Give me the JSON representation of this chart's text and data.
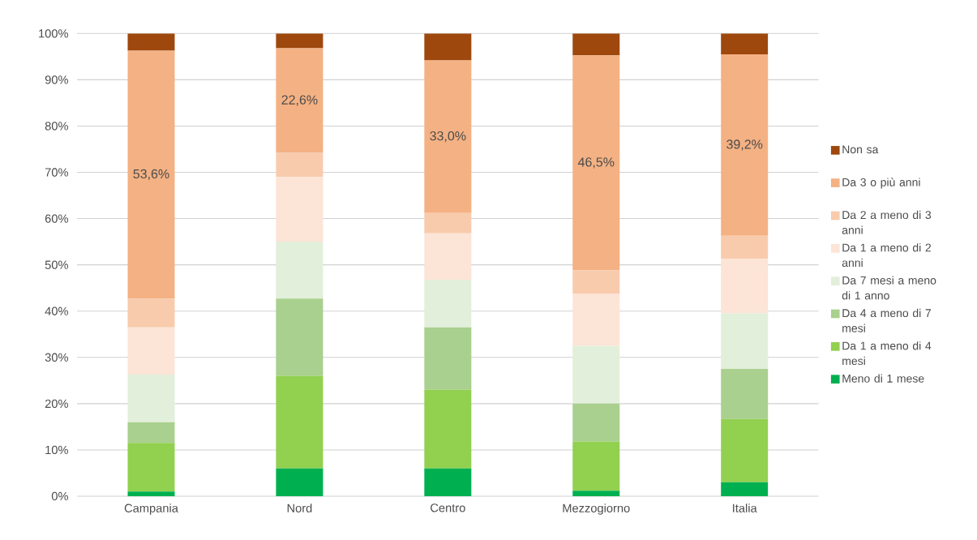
{
  "chart_data": {
    "type": "bar",
    "stacked": true,
    "grid": "y",
    "legend": "right",
    "categories": [
      "Campania",
      "Nord",
      "Centro",
      "Mezzogiorno",
      "Italia"
    ],
    "ylim": [
      0,
      100
    ],
    "yticks": [
      {
        "value": 0,
        "label": "0%"
      },
      {
        "value": 10,
        "label": "10%"
      },
      {
        "value": 20,
        "label": "20%"
      },
      {
        "value": 30,
        "label": "30%"
      },
      {
        "value": 40,
        "label": "40%"
      },
      {
        "value": 50,
        "label": "50%"
      },
      {
        "value": 60,
        "label": "60%"
      },
      {
        "value": 70,
        "label": "70%"
      },
      {
        "value": 80,
        "label": "80%"
      },
      {
        "value": 90,
        "label": "90%"
      },
      {
        "value": 100,
        "label": "100%"
      }
    ],
    "series": [
      {
        "name": "Meno di 1 mese",
        "color": "#00b050",
        "values": [
          1.0,
          6.0,
          6.0,
          1.2,
          3.0
        ]
      },
      {
        "name": "Da 1 a meno di 4 mesi",
        "color": "#92d050",
        "values": [
          10.5,
          20.0,
          17.0,
          10.6,
          13.7
        ]
      },
      {
        "name": "Da 4 a meno di 7 mesi",
        "color": "#a9d08e",
        "values": [
          4.5,
          16.7,
          13.5,
          8.2,
          10.8
        ]
      },
      {
        "name": "Da 7 mesi a meno di 1 anno",
        "color": "#e2efda",
        "values": [
          10.3,
          12.3,
          10.3,
          12.5,
          12.0
        ]
      },
      {
        "name": "Da 1 a meno di 2 anni",
        "color": "#fce4d6",
        "values": [
          10.2,
          14.0,
          10.0,
          11.3,
          11.8
        ]
      },
      {
        "name": "Da 2 a meno di 3 anni",
        "color": "#f8cbad",
        "values": [
          6.2,
          5.2,
          4.4,
          5.0,
          5.0
        ]
      },
      {
        "name": "Da 3 o più anni",
        "color": "#f4b183",
        "values": [
          53.6,
          22.6,
          33.0,
          46.5,
          39.2
        ],
        "value_labels": [
          "53,6%",
          "22,6%",
          "33,0%",
          "46,5%",
          "39,2%"
        ]
      },
      {
        "name": "Non sa",
        "color": "#9e480e",
        "values": [
          3.7,
          3.2,
          5.8,
          4.7,
          4.5
        ]
      }
    ]
  }
}
